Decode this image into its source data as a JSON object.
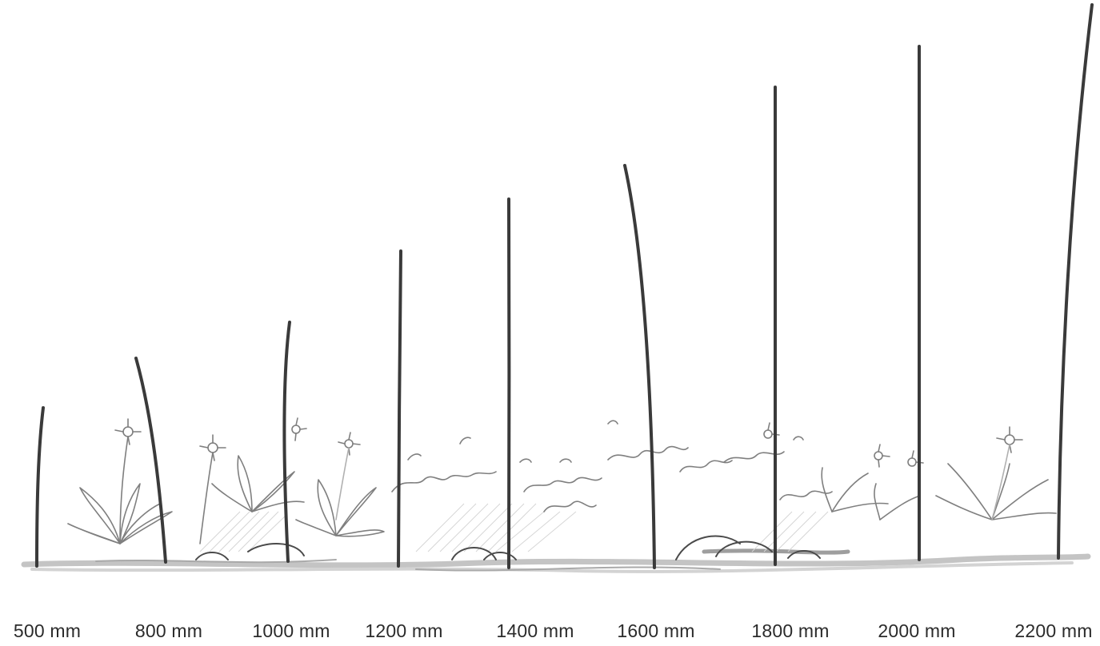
{
  "stakes": [
    {
      "label": "500 mm",
      "bend": "slight"
    },
    {
      "label": "800 mm",
      "bend": "curved"
    },
    {
      "label": "1000 mm",
      "bend": "slight"
    },
    {
      "label": "1200 mm",
      "bend": "straight"
    },
    {
      "label": "1400 mm",
      "bend": "straight"
    },
    {
      "label": "1600 mm",
      "bend": "curved"
    },
    {
      "label": "1800 mm",
      "bend": "straight"
    },
    {
      "label": "2000 mm",
      "bend": "straight"
    },
    {
      "label": "2200 mm",
      "bend": "slight"
    }
  ],
  "colors": {
    "stake": "#3a3a3a",
    "sketch": "#8a8a8a",
    "ground": "#b5b5b5",
    "label": "#2b2b2b",
    "background": "#ffffff"
  }
}
